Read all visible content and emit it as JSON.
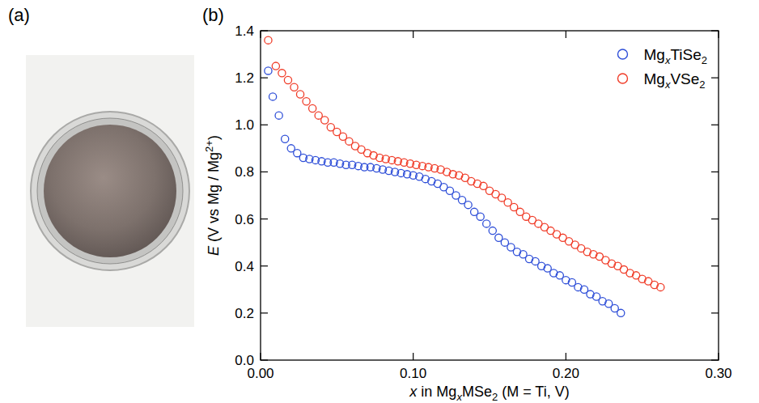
{
  "panel_labels": [
    "(a)",
    "(b)"
  ],
  "chart_data": {
    "type": "scatter",
    "x_label": "x in MgxMSe2 (M = Ti, V)",
    "y_label": "E (V vs Mg / Mg2+)",
    "xlim": [
      0,
      0.3
    ],
    "ylim": [
      0,
      1.4
    ],
    "xticks": [
      {
        "value": 0,
        "label": "0.00"
      },
      {
        "value": 0.1,
        "label": "0.10"
      },
      {
        "value": 0.2,
        "label": "0.20"
      },
      {
        "value": 0.3,
        "label": "0.30"
      }
    ],
    "yticks": [
      {
        "value": 0,
        "label": "0.0"
      },
      {
        "value": 0.2,
        "label": "0.2"
      },
      {
        "value": 0.4,
        "label": "0.4"
      },
      {
        "value": 0.6,
        "label": "0.6"
      },
      {
        "value": 0.8,
        "label": "0.8"
      },
      {
        "value": 1.0,
        "label": "1.0"
      },
      {
        "value": 1.2,
        "label": "1.2"
      },
      {
        "value": 1.4,
        "label": "1.4"
      }
    ],
    "legend": "top-right",
    "grid": false,
    "series": [
      {
        "name": "MgxTiSe2",
        "color": "#2f4fd8",
        "marker": "open-circle",
        "x": [
          0.005,
          0.008,
          0.012,
          0.016,
          0.02,
          0.024,
          0.028,
          0.032,
          0.036,
          0.04,
          0.044,
          0.048,
          0.052,
          0.056,
          0.06,
          0.064,
          0.068,
          0.072,
          0.076,
          0.08,
          0.084,
          0.088,
          0.092,
          0.096,
          0.1,
          0.104,
          0.108,
          0.112,
          0.116,
          0.12,
          0.124,
          0.128,
          0.132,
          0.136,
          0.14,
          0.144,
          0.148,
          0.152,
          0.156,
          0.16,
          0.164,
          0.168,
          0.172,
          0.176,
          0.18,
          0.184,
          0.188,
          0.192,
          0.196,
          0.2,
          0.204,
          0.208,
          0.212,
          0.216,
          0.22,
          0.224,
          0.228,
          0.232,
          0.236
        ],
        "values": [
          1.23,
          1.12,
          1.04,
          0.94,
          0.9,
          0.88,
          0.86,
          0.855,
          0.85,
          0.845,
          0.84,
          0.84,
          0.835,
          0.83,
          0.83,
          0.825,
          0.82,
          0.82,
          0.815,
          0.81,
          0.805,
          0.8,
          0.795,
          0.79,
          0.785,
          0.78,
          0.77,
          0.76,
          0.75,
          0.735,
          0.72,
          0.7,
          0.68,
          0.66,
          0.63,
          0.61,
          0.58,
          0.55,
          0.52,
          0.5,
          0.48,
          0.46,
          0.45,
          0.43,
          0.42,
          0.4,
          0.39,
          0.37,
          0.36,
          0.34,
          0.33,
          0.31,
          0.3,
          0.28,
          0.27,
          0.25,
          0.24,
          0.22,
          0.2
        ]
      },
      {
        "name": "MgxVSe2",
        "color": "#f03c28",
        "marker": "open-circle",
        "x": [
          0.005,
          0.01,
          0.014,
          0.018,
          0.022,
          0.026,
          0.03,
          0.034,
          0.038,
          0.042,
          0.046,
          0.05,
          0.054,
          0.058,
          0.062,
          0.066,
          0.07,
          0.074,
          0.078,
          0.082,
          0.086,
          0.09,
          0.094,
          0.098,
          0.102,
          0.106,
          0.11,
          0.114,
          0.118,
          0.122,
          0.126,
          0.13,
          0.134,
          0.138,
          0.142,
          0.146,
          0.15,
          0.154,
          0.158,
          0.162,
          0.166,
          0.17,
          0.174,
          0.178,
          0.182,
          0.186,
          0.19,
          0.194,
          0.198,
          0.202,
          0.206,
          0.21,
          0.214,
          0.218,
          0.222,
          0.226,
          0.23,
          0.234,
          0.238,
          0.242,
          0.246,
          0.25,
          0.254,
          0.258,
          0.262
        ],
        "values": [
          1.36,
          1.25,
          1.22,
          1.19,
          1.16,
          1.13,
          1.1,
          1.07,
          1.04,
          1.02,
          0.99,
          0.97,
          0.95,
          0.93,
          0.91,
          0.895,
          0.88,
          0.87,
          0.86,
          0.855,
          0.85,
          0.845,
          0.84,
          0.835,
          0.83,
          0.825,
          0.82,
          0.815,
          0.81,
          0.8,
          0.79,
          0.785,
          0.775,
          0.76,
          0.75,
          0.74,
          0.72,
          0.705,
          0.69,
          0.67,
          0.65,
          0.63,
          0.61,
          0.595,
          0.58,
          0.565,
          0.55,
          0.535,
          0.52,
          0.505,
          0.49,
          0.475,
          0.46,
          0.45,
          0.44,
          0.425,
          0.41,
          0.4,
          0.385,
          0.37,
          0.36,
          0.345,
          0.335,
          0.32,
          0.31
        ]
      }
    ]
  }
}
